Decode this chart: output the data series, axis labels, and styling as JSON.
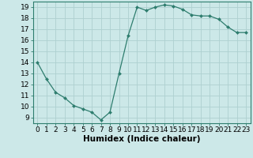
{
  "x": [
    0,
    1,
    2,
    3,
    4,
    5,
    6,
    7,
    8,
    9,
    10,
    11,
    12,
    13,
    14,
    15,
    16,
    17,
    18,
    19,
    20,
    21,
    22,
    23
  ],
  "y": [
    14,
    12.5,
    11.3,
    10.8,
    10.1,
    9.8,
    9.5,
    8.8,
    9.5,
    13.0,
    16.4,
    19.0,
    18.7,
    19.0,
    19.2,
    19.1,
    18.8,
    18.3,
    18.2,
    18.2,
    17.9,
    17.2,
    16.7,
    16.7
  ],
  "line_color": "#2e7d6e",
  "marker": "D",
  "marker_size": 2.0,
  "bg_color": "#cce8e8",
  "grid_color": "#aed0d0",
  "xlabel": "Humidex (Indice chaleur)",
  "xlim": [
    -0.5,
    23.5
  ],
  "ylim": [
    8.5,
    19.5
  ],
  "yticks": [
    9,
    10,
    11,
    12,
    13,
    14,
    15,
    16,
    17,
    18,
    19
  ],
  "xticks": [
    0,
    1,
    2,
    3,
    4,
    5,
    6,
    7,
    8,
    9,
    10,
    11,
    12,
    13,
    14,
    15,
    16,
    17,
    18,
    19,
    20,
    21,
    22,
    23
  ],
  "xtick_labels": [
    "0",
    "1",
    "2",
    "3",
    "4",
    "5",
    "6",
    "7",
    "8",
    "9",
    "10",
    "11",
    "12",
    "13",
    "14",
    "15",
    "16",
    "17",
    "18",
    "19",
    "20",
    "21",
    "22",
    "23"
  ],
  "label_fontsize": 7.5,
  "tick_fontsize": 6.5
}
